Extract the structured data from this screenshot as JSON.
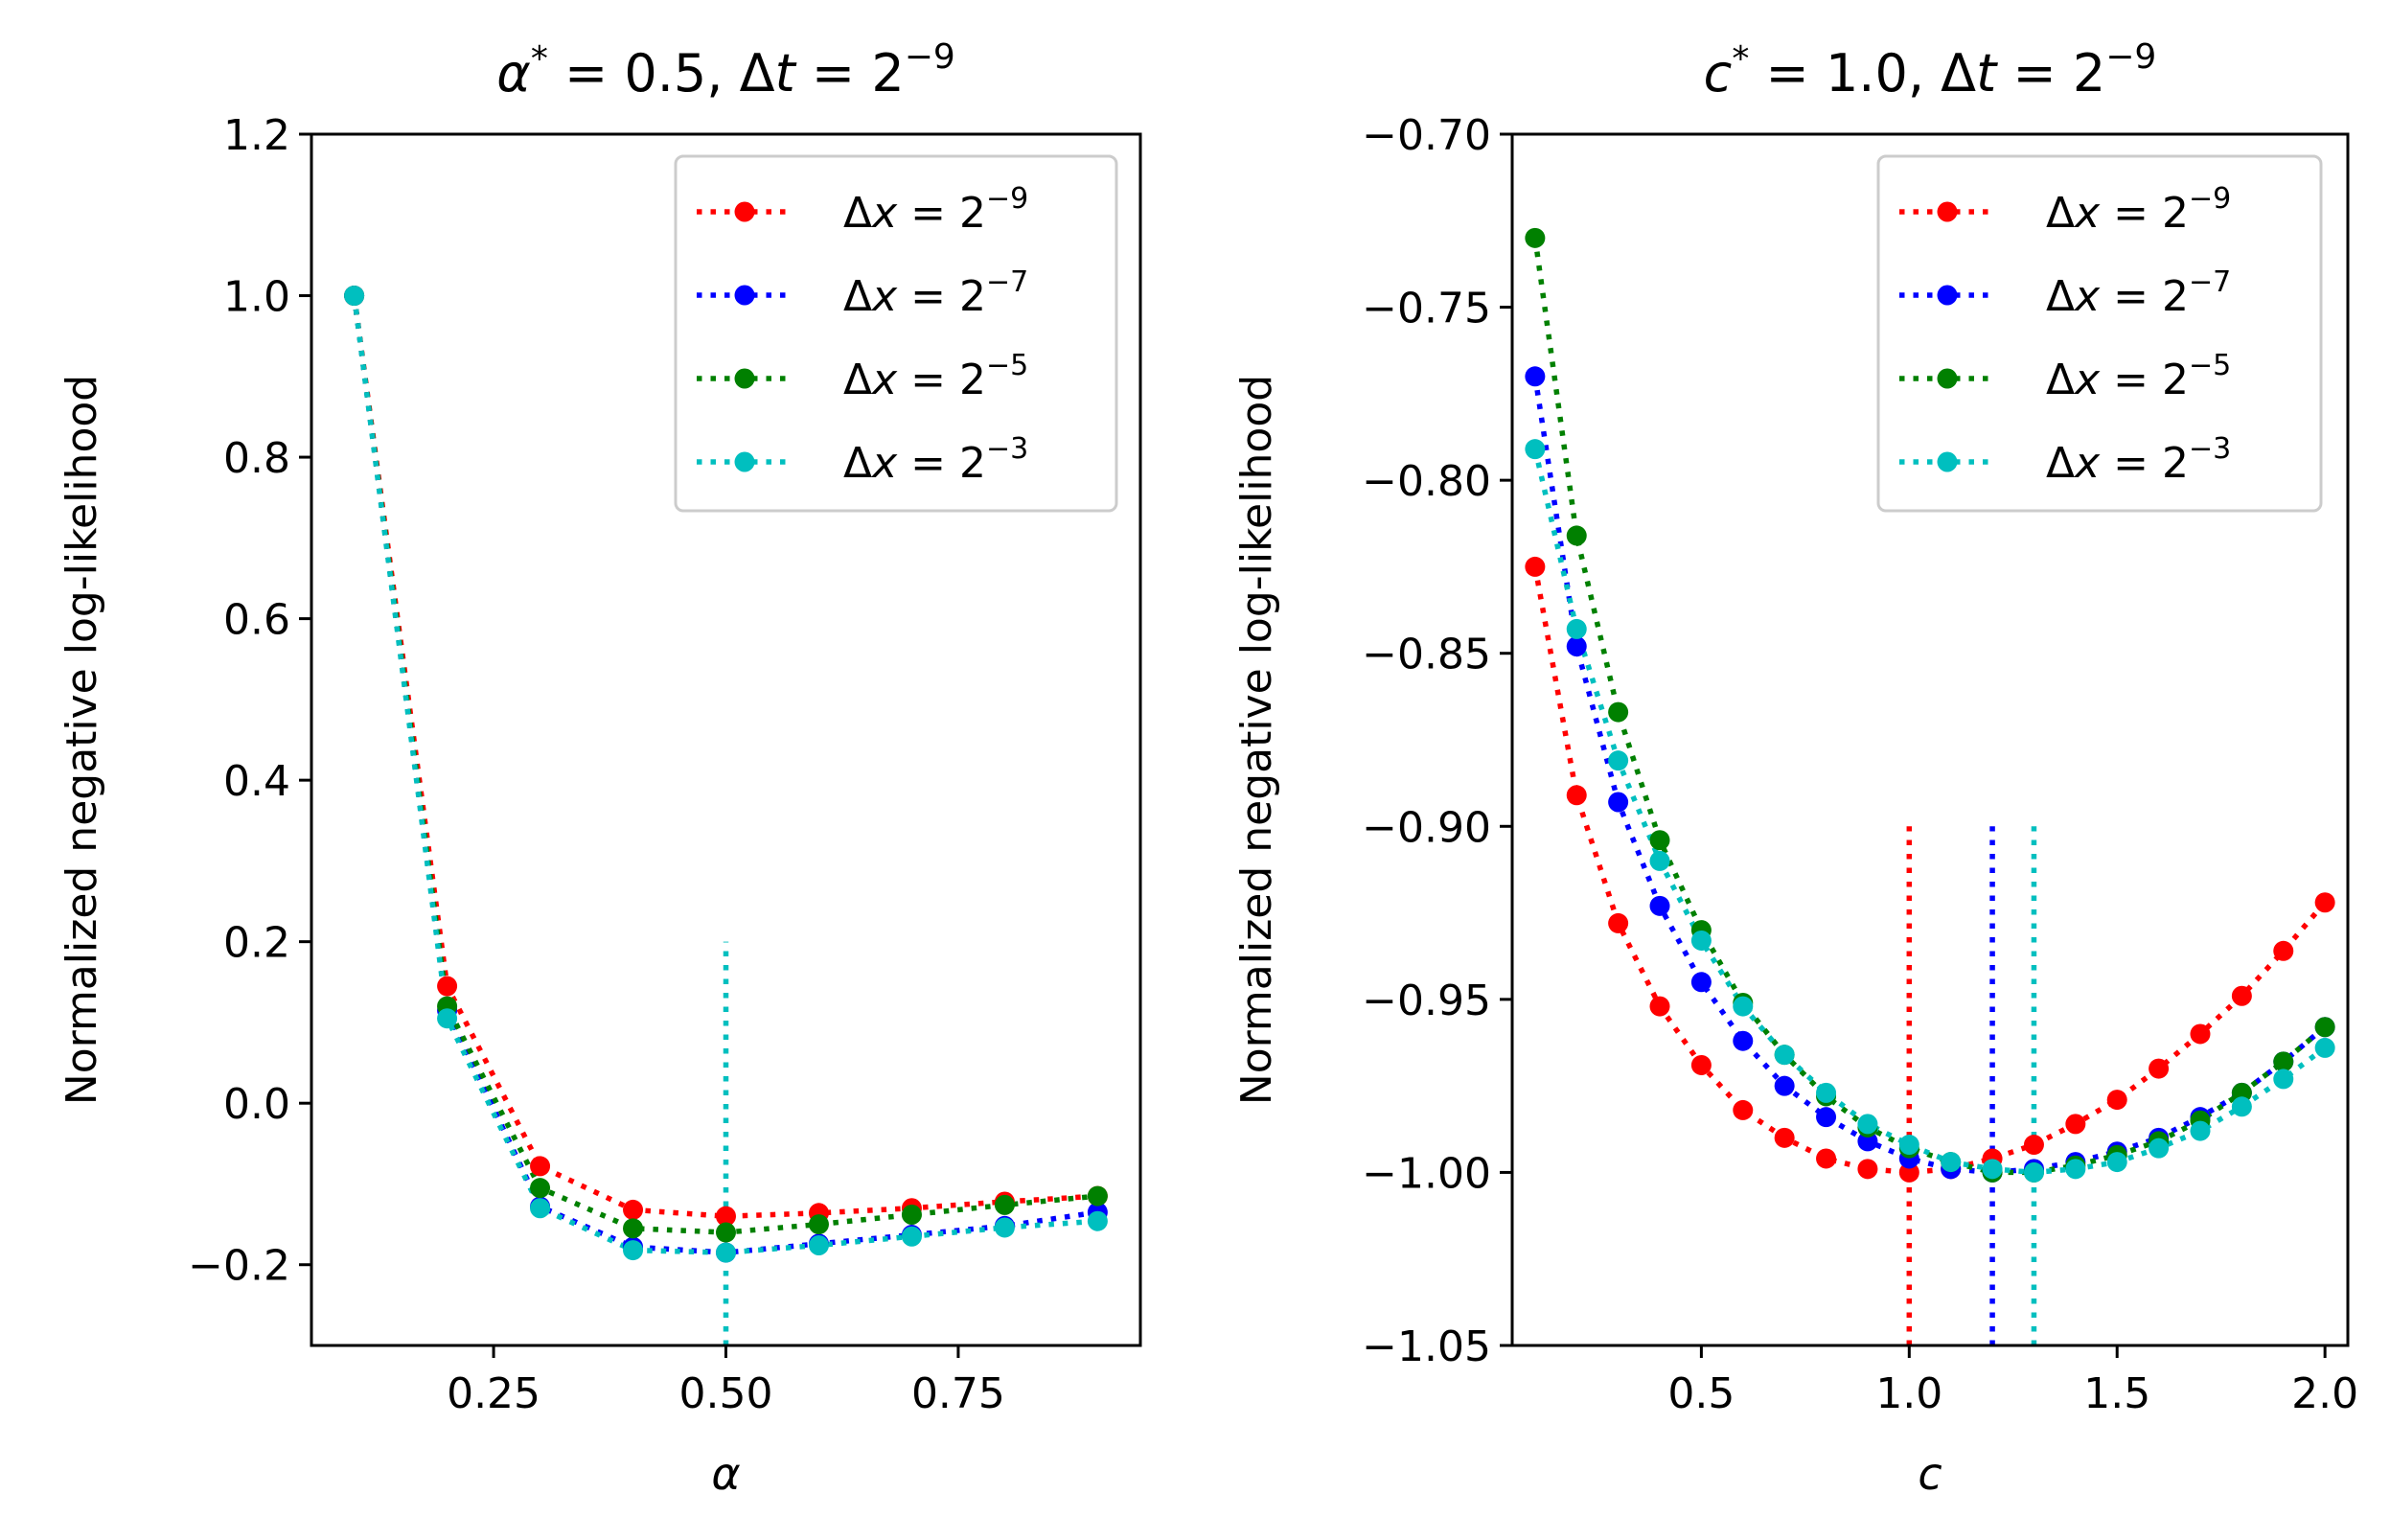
{
  "chart_data": [
    {
      "type": "line",
      "title": "α* = 0.5, Δt = 2^{-9}",
      "title_parts": {
        "sym": "α",
        "sup": "*",
        "rest": " = 0.5, Δ",
        "var": "t",
        "eq": " = 2",
        "exp": "−9"
      },
      "xlabel": "α",
      "ylabel": "Normalized negative log-likelihood",
      "xlim": [
        0.054,
        0.946
      ],
      "ylim": [
        -0.3,
        1.2
      ],
      "xticks": [
        0.25,
        0.5,
        0.75
      ],
      "xtick_labels": [
        "0.25",
        "0.50",
        "0.75"
      ],
      "yticks": [
        -0.2,
        0.0,
        0.2,
        0.4,
        0.6,
        0.8,
        1.0,
        1.2
      ],
      "ytick_labels": [
        "−0.2",
        "0.0",
        "0.2",
        "0.4",
        "0.6",
        "0.8",
        "1.0",
        "1.2"
      ],
      "legend_position": "top-right",
      "x": [
        0.1,
        0.2,
        0.3,
        0.4,
        0.5,
        0.6,
        0.7,
        0.8,
        0.9
      ],
      "series": [
        {
          "name": "Δx = 2^{-9}",
          "label_var": "x",
          "label_exp": "−9",
          "color": "#ff0000",
          "values": [
            1.0,
            0.145,
            -0.078,
            -0.132,
            -0.14,
            -0.136,
            -0.13,
            -0.122,
            -0.115
          ]
        },
        {
          "name": "Δx = 2^{-7}",
          "label_var": "x",
          "label_exp": "−7",
          "color": "#0000ff",
          "values": [
            1.0,
            0.115,
            -0.128,
            -0.178,
            -0.185,
            -0.174,
            -0.163,
            -0.152,
            -0.135
          ]
        },
        {
          "name": "Δx = 2^{-5}",
          "label_var": "x",
          "label_exp": "−5",
          "color": "#008000",
          "values": [
            1.0,
            0.12,
            -0.105,
            -0.155,
            -0.16,
            -0.15,
            -0.138,
            -0.126,
            -0.115
          ]
        },
        {
          "name": "Δx = 2^{-3}",
          "label_var": "x",
          "label_exp": "−3",
          "color": "#00bfbf",
          "values": [
            1.0,
            0.105,
            -0.13,
            -0.182,
            -0.185,
            -0.176,
            -0.165,
            -0.154,
            -0.146
          ]
        }
      ],
      "vlines": [
        {
          "x": 0.5,
          "color": "#00bfbf",
          "y_range": [
            -0.3,
            0.2
          ]
        }
      ]
    },
    {
      "type": "line",
      "title": "c* = 1.0, Δt = 2^{-9}",
      "title_parts": {
        "sym": "c",
        "sup": "*",
        "rest": " = 1.0, Δ",
        "var": "t",
        "eq": " = 2",
        "exp": "−9"
      },
      "xlabel": "c",
      "ylabel": "Normalized negative log-likelihood",
      "xlim": [
        0.045,
        2.055
      ],
      "ylim": [
        -1.05,
        -0.7
      ],
      "xticks": [
        0.5,
        1.0,
        1.5,
        2.0
      ],
      "xtick_labels": [
        "0.5",
        "1.0",
        "1.5",
        "2.0"
      ],
      "yticks": [
        -1.05,
        -1.0,
        -0.95,
        -0.9,
        -0.85,
        -0.8,
        -0.75,
        -0.7
      ],
      "ytick_labels": [
        "−1.05",
        "−1.00",
        "−0.95",
        "−0.90",
        "−0.85",
        "−0.80",
        "−0.75",
        "−0.70"
      ],
      "legend_position": "top-right",
      "x": [
        0.1,
        0.2,
        0.3,
        0.4,
        0.5,
        0.6,
        0.7,
        0.8,
        0.9,
        1.0,
        1.1,
        1.2,
        1.3,
        1.4,
        1.5,
        1.6,
        1.7,
        1.8,
        1.9,
        2.0
      ],
      "series": [
        {
          "name": "Δx = 2^{-9}",
          "label_var": "x",
          "label_exp": "−9",
          "color": "#ff0000",
          "values": [
            -0.825,
            -0.891,
            -0.928,
            -0.952,
            -0.969,
            -0.982,
            -0.99,
            -0.996,
            -0.999,
            -1.0,
            -0.999,
            -0.996,
            -0.992,
            -0.986,
            -0.979,
            -0.97,
            -0.96,
            -0.949,
            -0.936,
            -0.922
          ]
        },
        {
          "name": "Δx = 2^{-7}",
          "label_var": "x",
          "label_exp": "−7",
          "color": "#0000ff",
          "values": [
            -0.77,
            -0.848,
            -0.893,
            -0.923,
            -0.945,
            -0.962,
            -0.975,
            -0.984,
            -0.991,
            -0.996,
            -0.999,
            -1.0,
            -0.999,
            -0.997,
            -0.994,
            -0.99,
            -0.984,
            -0.977,
            -0.968,
            -0.958
          ]
        },
        {
          "name": "Δx = 2^{-5}",
          "label_var": "x",
          "label_exp": "−5",
          "color": "#008000",
          "values": [
            -0.73,
            -0.816,
            -0.867,
            -0.904,
            -0.93,
            -0.951,
            -0.966,
            -0.978,
            -0.987,
            -0.993,
            -0.997,
            -1.0,
            -1.0,
            -0.998,
            -0.995,
            -0.991,
            -0.985,
            -0.977,
            -0.968,
            -0.958
          ]
        },
        {
          "name": "Δx = 2^{-3}",
          "label_var": "x",
          "label_exp": "−3",
          "color": "#00bfbf",
          "values": [
            -0.791,
            -0.843,
            -0.881,
            -0.91,
            -0.933,
            -0.952,
            -0.966,
            -0.977,
            -0.986,
            -0.992,
            -0.997,
            -0.999,
            -1.0,
            -0.999,
            -0.997,
            -0.993,
            -0.988,
            -0.981,
            -0.973,
            -0.964
          ]
        }
      ],
      "vlines": [
        {
          "x": 1.0,
          "color": "#ff0000",
          "y_range": [
            -1.05,
            -0.9
          ]
        },
        {
          "x": 1.2,
          "color": "#0000ff",
          "y_range": [
            -1.05,
            -0.9
          ]
        },
        {
          "x": 1.3,
          "color": "#00bfbf",
          "y_range": [
            -1.05,
            -0.9
          ]
        }
      ]
    }
  ]
}
